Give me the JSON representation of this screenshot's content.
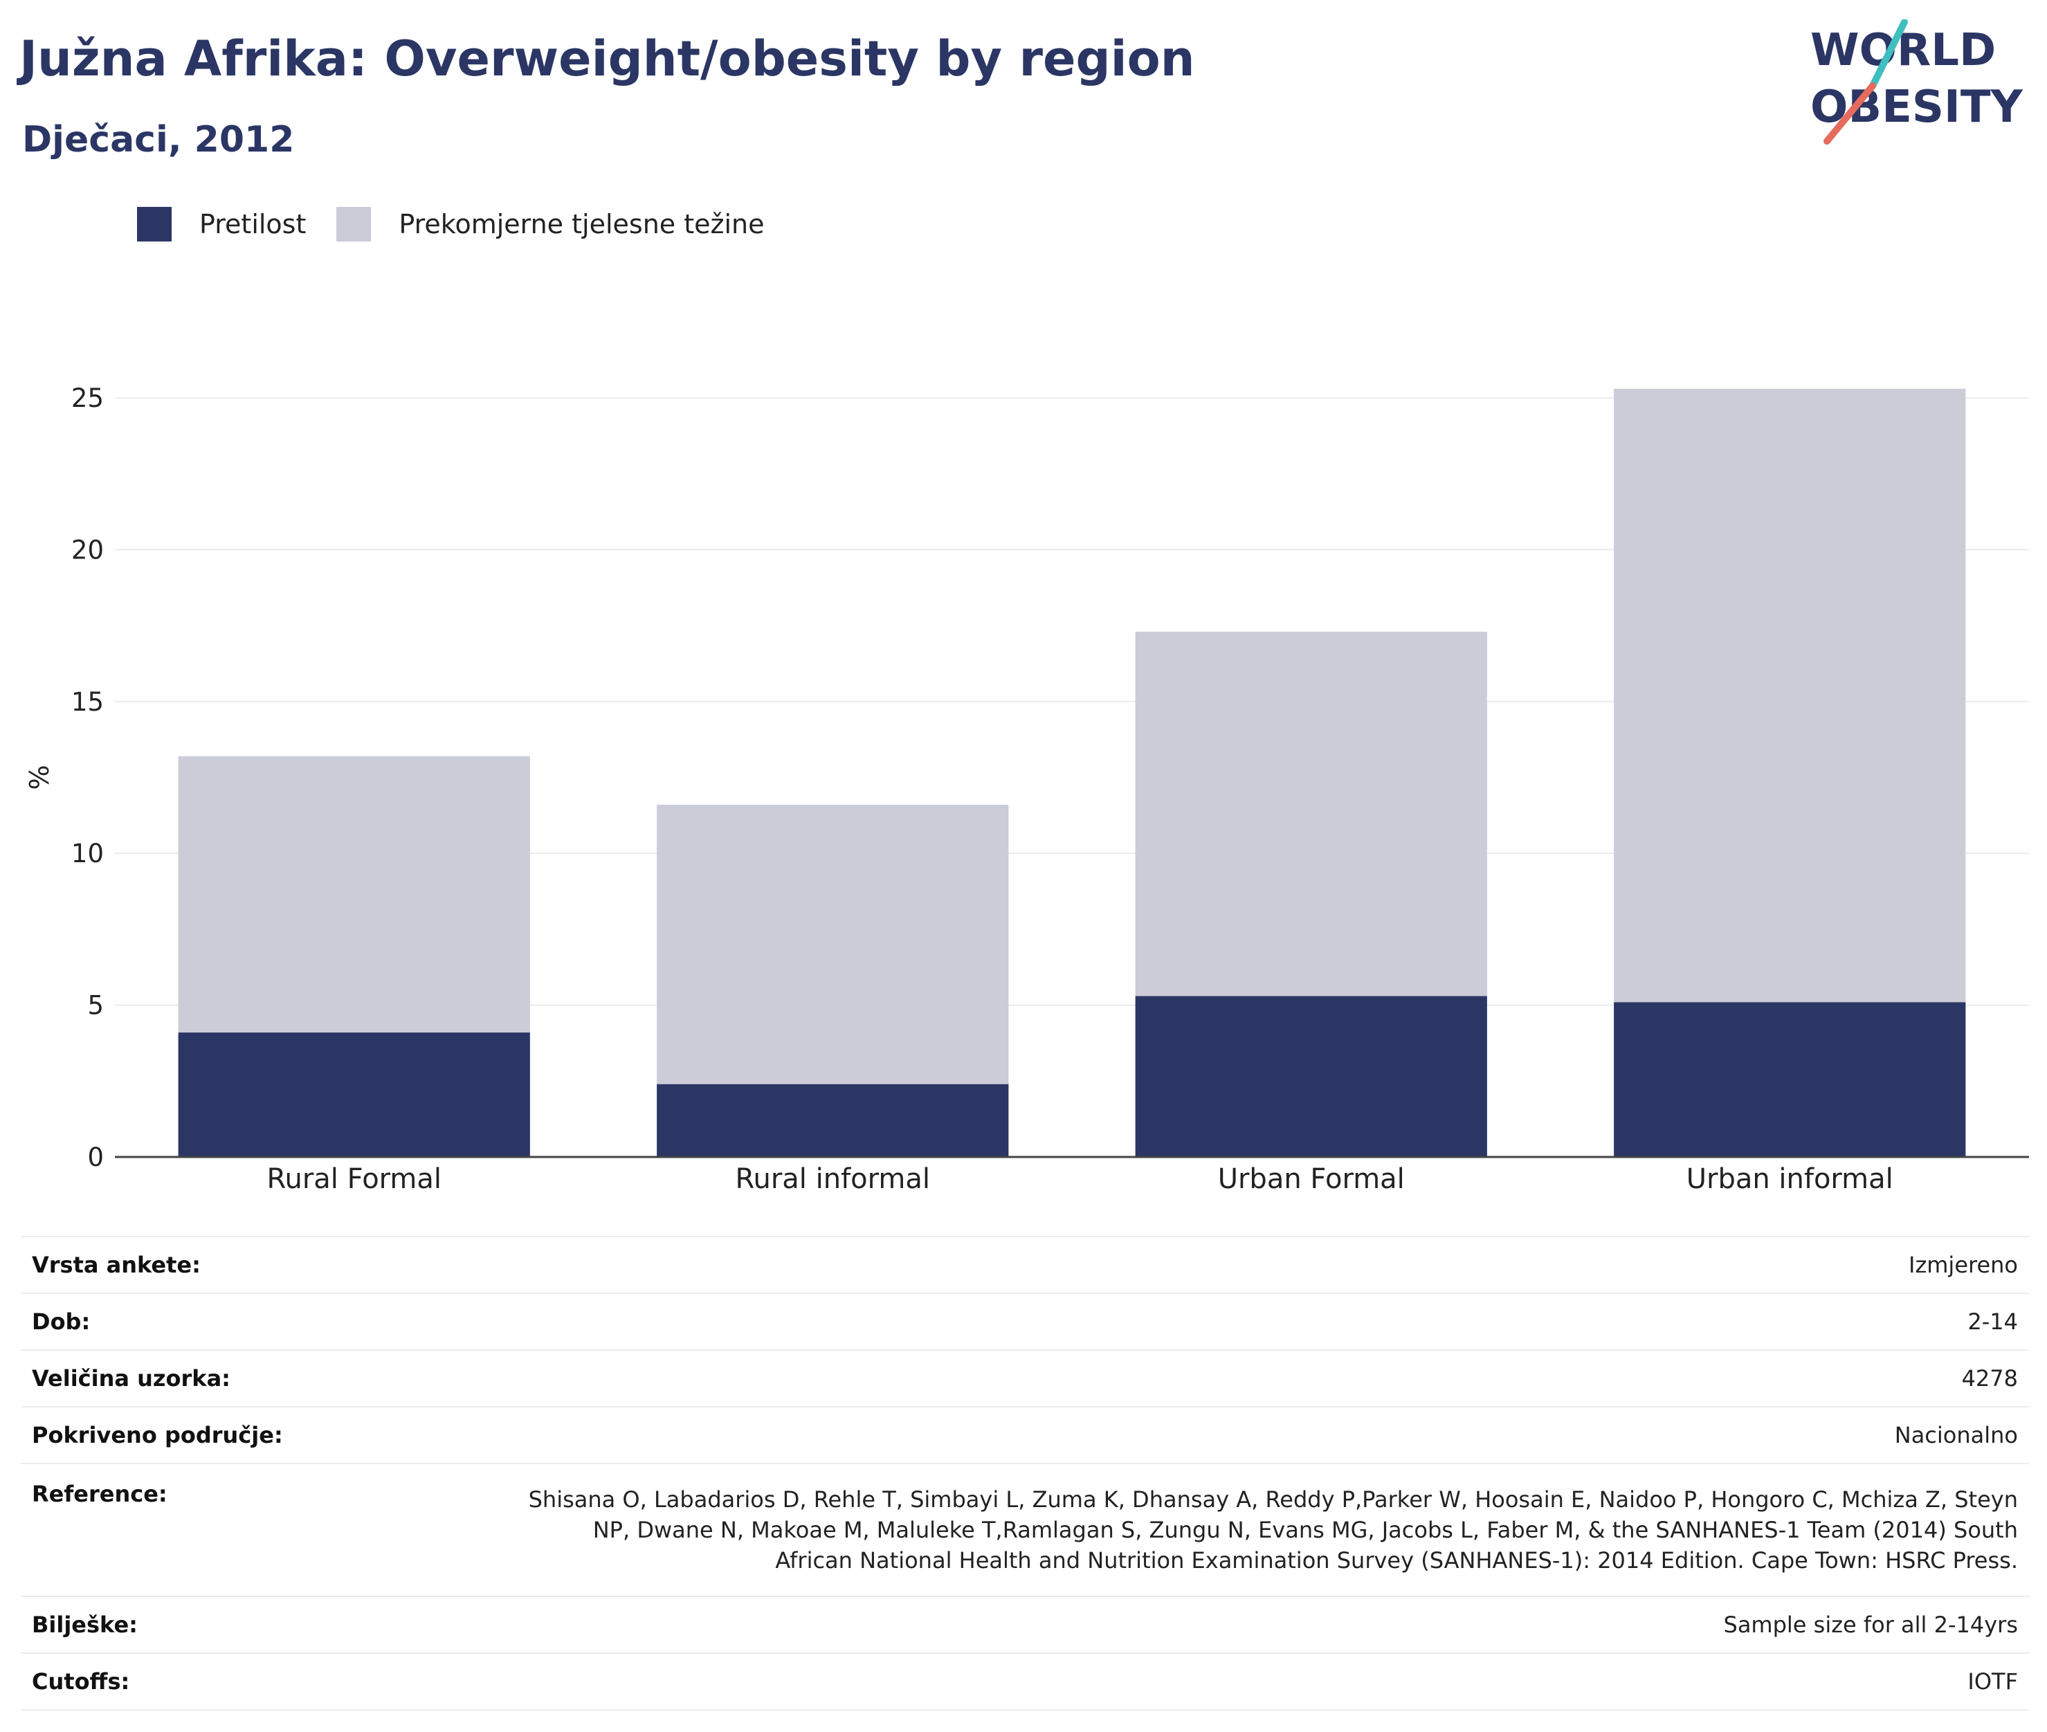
{
  "header": {
    "title": "Južna Afrika: Overweight/obesity by region",
    "subtitle": "Dječaci, 2012"
  },
  "logo": {
    "line1": "WORLD",
    "line2": "OBESITY"
  },
  "colors": {
    "obesity": "#2b3664",
    "overweight": "#cbccd8",
    "text": "#2b3664"
  },
  "chart_data": {
    "type": "bar",
    "stacked": true,
    "categories": [
      "Rural Formal",
      "Rural informal",
      "Urban Formal",
      "Urban informal"
    ],
    "series": [
      {
        "name": "Pretilost",
        "values": [
          4.1,
          2.4,
          5.3,
          5.1
        ]
      },
      {
        "name": "Prekomjerne tjelesne težine",
        "values": [
          9.1,
          9.2,
          12.0,
          20.2
        ]
      }
    ],
    "ylabel": "%",
    "xlabel": "",
    "ylim": [
      0,
      25.5
    ],
    "yticks": [
      0,
      5,
      10,
      15,
      20,
      25
    ],
    "grid": true,
    "legend": "top-left"
  },
  "info": [
    {
      "key": "Vrsta ankete:",
      "value": "Izmjereno"
    },
    {
      "key": "Dob:",
      "value": "2-14"
    },
    {
      "key": "Veličina uzorka:",
      "value": "4278"
    },
    {
      "key": "Pokriveno područje:",
      "value": "Nacionalno"
    },
    {
      "key": "Reference:",
      "value": "Shisana O, Labadarios D, Rehle T, Simbayi L, Zuma K, Dhansay A, Reddy P,Parker W, Hoosain E, Naidoo P, Hongoro C, Mchiza Z, Steyn NP, Dwane N, Makoae M, Maluleke T,Ramlagan S, Zungu N, Evans MG, Jacobs L, Faber M, & the SANHANES-1 Team (2014) South African National Health and Nutrition Examination Survey (SANHANES-1): 2014 Edition. Cape Town: HSRC Press."
    },
    {
      "key": "Bilješke:",
      "value": "Sample size for all 2-14yrs"
    },
    {
      "key": "Cutoffs:",
      "value": "IOTF"
    }
  ]
}
